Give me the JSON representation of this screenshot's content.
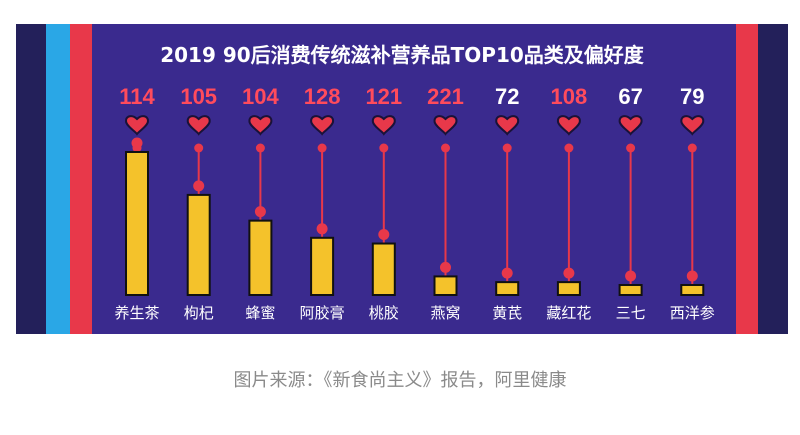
{
  "colors": {
    "background": "#3a2a8e",
    "stripe_navy": "#23205a",
    "stripe_blue": "#2aa7e6",
    "stripe_red": "#e8384a",
    "bar_fill": "#f4c22b",
    "bar_stroke": "#111111",
    "heart": "#e8384a",
    "label_red": "#ff4b5c",
    "label_white": "#ffffff"
  },
  "caption": "图片来源：《新食尚主义》报告，阿里健康",
  "chart_data": {
    "type": "bar",
    "title": "2019 90后消费传统滋补营养品TOP10品类及偏好度",
    "categories": [
      "养生茶",
      "枸杞",
      "蜂蜜",
      "阿胶膏",
      "桃胶",
      "燕窝",
      "黄芪",
      "藏红花",
      "三七",
      "西洋参"
    ],
    "values": [
      100,
      70,
      52,
      40,
      36,
      13,
      9,
      9,
      7,
      7
    ],
    "value_labels": [
      "114",
      "105",
      "104",
      "128",
      "121",
      "221",
      "72",
      "108",
      "67",
      "79"
    ],
    "label_colors": [
      "red",
      "red",
      "red",
      "red",
      "red",
      "red",
      "white",
      "red",
      "white",
      "white"
    ],
    "ylim": [
      0,
      100
    ],
    "xlabel": "",
    "ylabel": ""
  }
}
